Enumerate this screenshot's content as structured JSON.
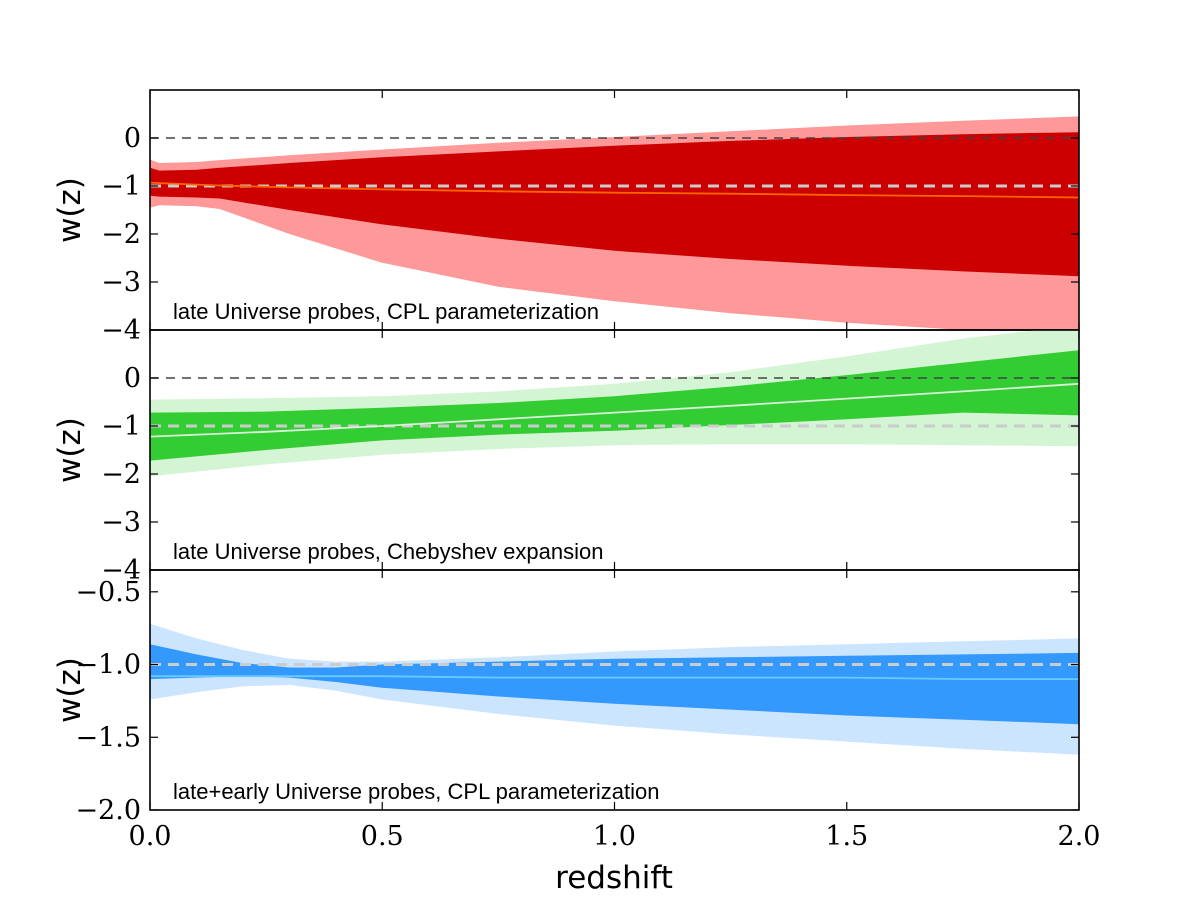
{
  "xlabel": "redshift",
  "x_tick_labels": [
    "0.0",
    "0.5",
    "1.0",
    "1.5",
    "2.0"
  ],
  "chart_data": [
    {
      "type": "area",
      "ylabel": "w(z)",
      "annotation": "late Universe probes, CPL parameterization",
      "xlim": [
        0,
        2
      ],
      "ylim": [
        -4,
        1
      ],
      "yticks": [
        0,
        -1,
        -2,
        -3,
        -4
      ],
      "ytick_labels": [
        "0",
        "−1",
        "−2",
        "−3",
        "−4"
      ],
      "reference_lines": [
        {
          "y": 0,
          "style": "dark-dashed"
        },
        {
          "y": -1,
          "style": "light-dashed"
        }
      ],
      "colors": {
        "outer": "#ff9999",
        "inner": "#cc0000",
        "mean": "#ff6600"
      },
      "x": [
        0,
        0.02,
        0.1,
        0.15,
        0.3,
        0.5,
        0.75,
        1.0,
        1.25,
        1.5,
        1.75,
        2.0
      ],
      "outer_upper": [
        -0.45,
        -0.52,
        -0.5,
        -0.46,
        -0.36,
        -0.24,
        -0.1,
        0.02,
        0.14,
        0.26,
        0.36,
        0.45
      ],
      "outer_lower": [
        -1.45,
        -1.4,
        -1.42,
        -1.48,
        -2.0,
        -2.6,
        -3.1,
        -3.4,
        -3.65,
        -3.85,
        -4.0,
        -4.0
      ],
      "inner_upper": [
        -0.62,
        -0.68,
        -0.66,
        -0.62,
        -0.52,
        -0.4,
        -0.28,
        -0.16,
        -0.06,
        0.02,
        0.08,
        0.12
      ],
      "inner_lower": [
        -1.2,
        -1.22,
        -1.24,
        -1.26,
        -1.5,
        -1.8,
        -2.1,
        -2.35,
        -2.52,
        -2.66,
        -2.78,
        -2.88
      ],
      "mean": [
        -0.93,
        -0.94,
        -0.97,
        -0.99,
        -1.03,
        -1.07,
        -1.11,
        -1.14,
        -1.16,
        -1.19,
        -1.21,
        -1.24
      ]
    },
    {
      "type": "area",
      "ylabel": "w(z)",
      "annotation": "late Universe probes, Chebyshev expansion",
      "xlim": [
        0,
        2
      ],
      "ylim": [
        -4,
        1
      ],
      "yticks": [
        0,
        -1,
        -2,
        -3,
        -4
      ],
      "ytick_labels": [
        "0",
        "−1",
        "−2",
        "−3",
        "−4"
      ],
      "reference_lines": [
        {
          "y": 0,
          "style": "dark-dashed"
        },
        {
          "y": -1,
          "style": "light-dashed"
        }
      ],
      "colors": {
        "outer": "#d3f5d3",
        "inner": "#33cc33",
        "mean": "#d9f2d9"
      },
      "x": [
        0,
        0.25,
        0.5,
        0.75,
        1.0,
        1.25,
        1.5,
        1.75,
        2.0
      ],
      "outer_upper": [
        -0.45,
        -0.42,
        -0.38,
        -0.28,
        -0.12,
        0.12,
        0.45,
        0.82,
        1.1
      ],
      "outer_lower": [
        -2.05,
        -1.8,
        -1.6,
        -1.48,
        -1.4,
        -1.38,
        -1.38,
        -1.4,
        -1.42
      ],
      "inner_upper": [
        -0.72,
        -0.7,
        -0.62,
        -0.52,
        -0.38,
        -0.18,
        0.06,
        0.32,
        0.58
      ],
      "inner_lower": [
        -1.72,
        -1.5,
        -1.3,
        -1.18,
        -1.1,
        -0.98,
        -0.86,
        -0.72,
        -0.78
      ],
      "mean": [
        -1.22,
        -1.12,
        -1.0,
        -0.86,
        -0.72,
        -0.58,
        -0.43,
        -0.28,
        -0.12
      ]
    },
    {
      "type": "area",
      "ylabel": "w(z)",
      "annotation": "late+early Universe probes, CPL parameterization",
      "xlim": [
        0,
        2
      ],
      "ylim": [
        -2,
        -0.35
      ],
      "yticks": [
        -0.5,
        -1.0,
        -1.5,
        -2.0
      ],
      "ytick_labels": [
        "−0.5",
        "−1.0",
        "−1.5",
        "−2.0"
      ],
      "reference_lines": [
        {
          "y": -1,
          "style": "light-dashed"
        }
      ],
      "colors": {
        "outer": "#cce5ff",
        "inner": "#3399ff",
        "mean": "#66ccff"
      },
      "x": [
        0,
        0.1,
        0.2,
        0.3,
        0.4,
        0.5,
        0.75,
        1.0,
        1.25,
        1.5,
        1.75,
        2.0
      ],
      "outer_upper": [
        -0.72,
        -0.82,
        -0.9,
        -0.96,
        -0.98,
        -0.98,
        -0.95,
        -0.91,
        -0.88,
        -0.86,
        -0.84,
        -0.82
      ],
      "outer_lower": [
        -1.24,
        -1.19,
        -1.15,
        -1.14,
        -1.18,
        -1.24,
        -1.34,
        -1.42,
        -1.48,
        -1.53,
        -1.58,
        -1.62
      ],
      "inner_upper": [
        -0.86,
        -0.93,
        -0.99,
        -1.02,
        -1.02,
        -1.0,
        -0.98,
        -0.96,
        -0.95,
        -0.94,
        -0.93,
        -0.92
      ],
      "inner_lower": [
        -1.1,
        -1.09,
        -1.08,
        -1.09,
        -1.12,
        -1.16,
        -1.22,
        -1.27,
        -1.31,
        -1.35,
        -1.38,
        -1.41
      ],
      "mean": [
        -1.08,
        -1.08,
        -1.08,
        -1.08,
        -1.08,
        -1.08,
        -1.09,
        -1.09,
        -1.09,
        -1.09,
        -1.1,
        -1.1
      ]
    }
  ]
}
